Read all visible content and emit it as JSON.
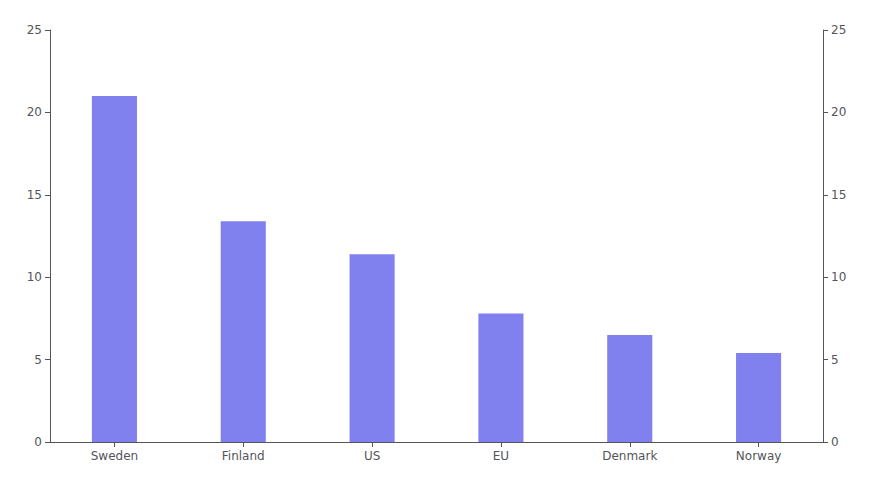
{
  "chart_data": {
    "type": "bar",
    "categories": [
      "Sweden",
      "Finland",
      "US",
      "EU",
      "Denmark",
      "Norway"
    ],
    "values": [
      21.0,
      13.4,
      11.4,
      7.8,
      6.5,
      5.4
    ],
    "color": "#8080ee",
    "ylim": [
      0,
      25
    ],
    "yticks": [
      0,
      5,
      10,
      15,
      20,
      25
    ],
    "y2lim": [
      0,
      25
    ],
    "y2ticks": [
      0,
      5,
      10,
      15,
      20,
      25
    ],
    "grid": false
  }
}
